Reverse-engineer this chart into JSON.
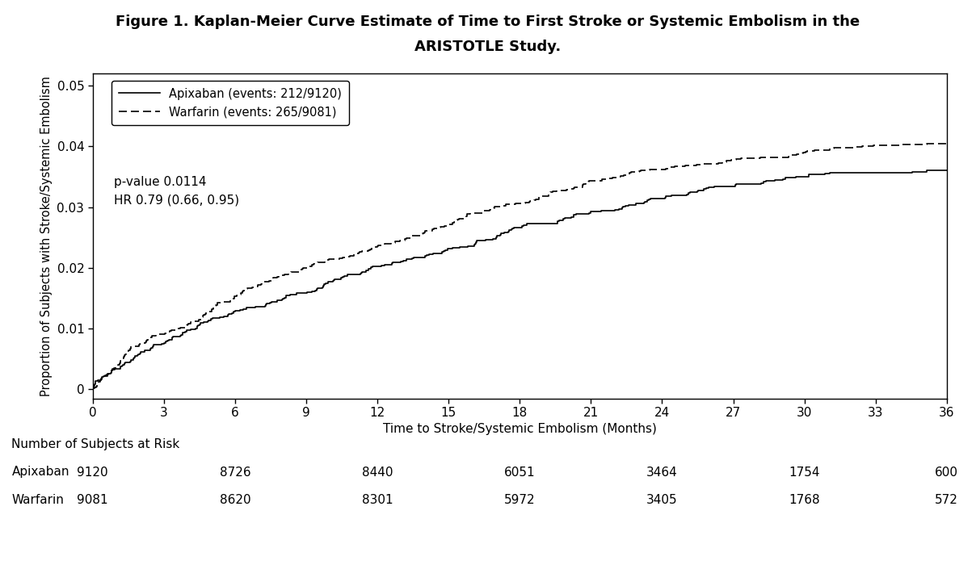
{
  "title_line1": "Figure 1. Kaplan-Meier Curve Estimate of Time to First Stroke or Systemic Embolism in the",
  "title_line2": "ARISTOTLE Study.",
  "xlabel": "Time to Stroke/Systemic Embolism (Months)",
  "ylabel": "Proportion of Subjects with Stroke/Systemic Embolism",
  "xlim": [
    0,
    36
  ],
  "ylim": [
    -0.0015,
    0.052
  ],
  "xticks": [
    0,
    3,
    6,
    9,
    12,
    15,
    18,
    21,
    24,
    27,
    30,
    33,
    36
  ],
  "yticks": [
    0,
    0.01,
    0.02,
    0.03,
    0.04,
    0.05
  ],
  "ytick_labels": [
    "0",
    "0.01",
    "0.02",
    "0.03",
    "0.04",
    "0.05"
  ],
  "legend_apixaban": "Apixaban (events: 212/9120)",
  "legend_warfarin": "Warfarin (events: 265/9081)",
  "annotation_pvalue": "p-value 0.0114",
  "annotation_hr": "HR 0.79 (0.66, 0.95)",
  "risk_label": "Number of Subjects at Risk",
  "risk_times": [
    0,
    6,
    12,
    18,
    24,
    30,
    36
  ],
  "risk_apixaban": [
    9120,
    8726,
    8440,
    6051,
    3464,
    1754,
    600
  ],
  "risk_warfarin": [
    9081,
    8620,
    8301,
    5972,
    3405,
    1768,
    572
  ],
  "background_color": "#ffffff",
  "api_final": 0.036,
  "war_final": 0.0405,
  "api_seed": 42,
  "war_seed": 99,
  "api_beta_a": 0.75,
  "api_beta_b": 1.8,
  "war_beta_a": 0.75,
  "war_beta_b": 1.8,
  "n_api_events": 212,
  "n_war_events": 265,
  "n_api_total": 9120,
  "n_war_total": 9081
}
